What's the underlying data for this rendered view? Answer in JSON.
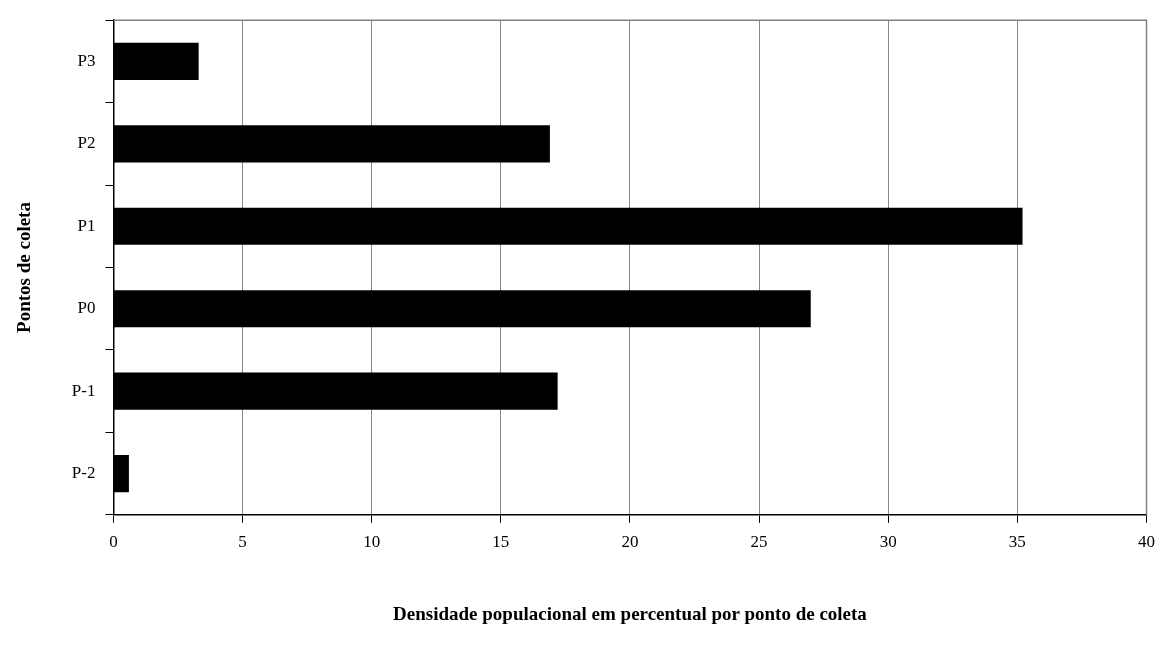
{
  "chart_data": {
    "type": "bar",
    "orientation": "horizontal",
    "xlabel": "Densidade populacional em percentual por ponto de coleta",
    "ylabel": "Pontos de coleta",
    "categories": [
      "P3",
      "P2",
      "P1",
      "P0",
      "P-1",
      "P-2"
    ],
    "values": [
      3.3,
      16.9,
      35.2,
      27.0,
      17.2,
      0.6
    ],
    "color": "#000000",
    "xlim": [
      0,
      40
    ],
    "xticks": [
      0,
      5,
      10,
      15,
      20,
      25,
      30,
      35,
      40
    ],
    "grid": "x",
    "legend": false
  }
}
